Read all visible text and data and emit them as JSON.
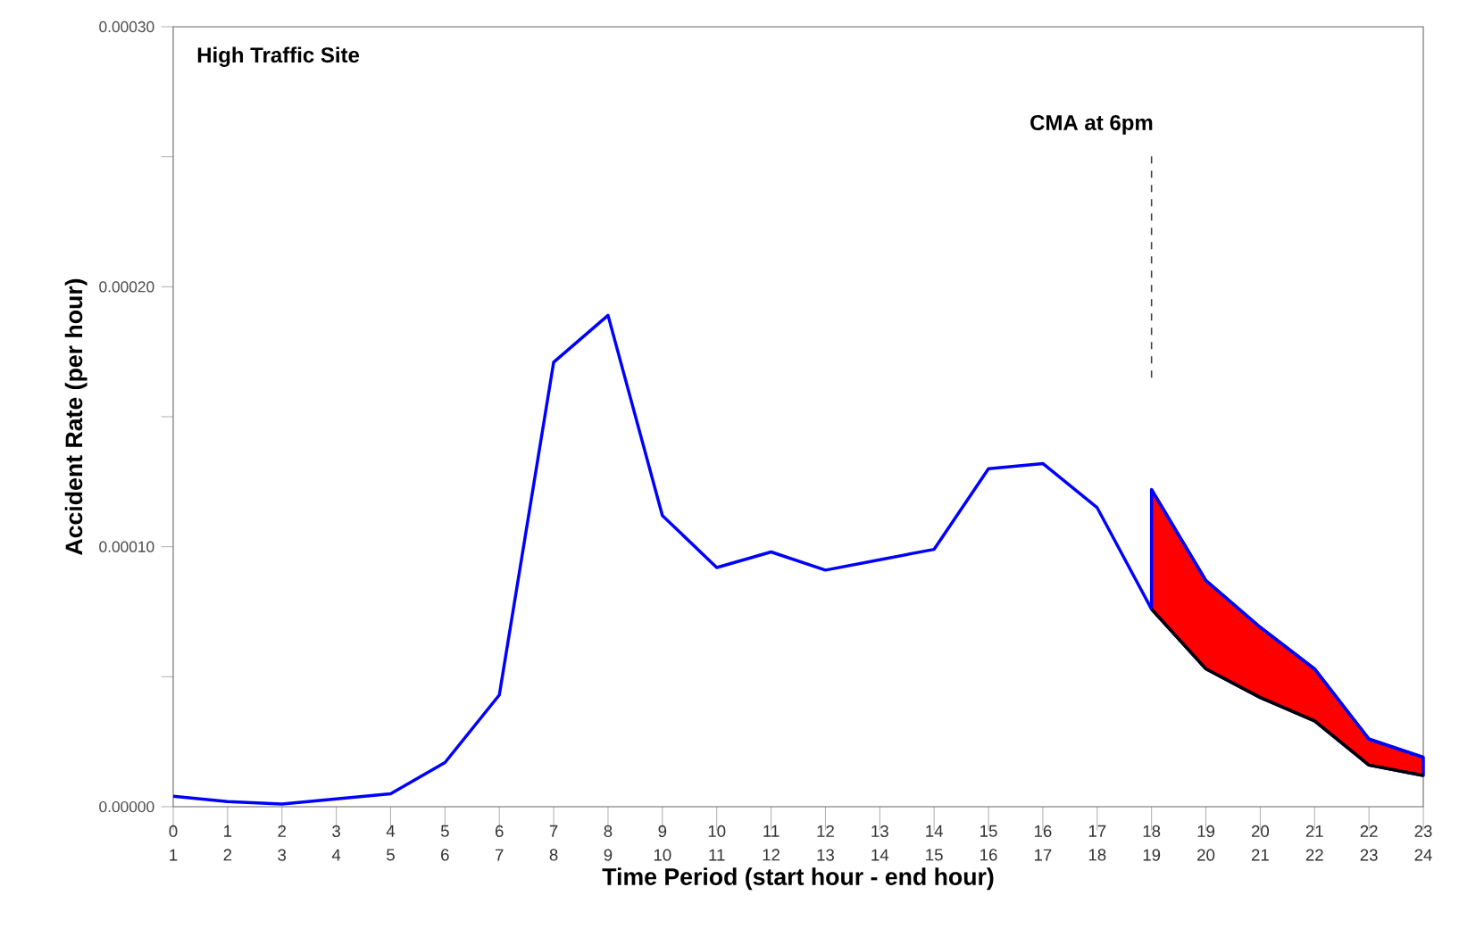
{
  "chart_data": {
    "type": "line",
    "title": "High Traffic Site",
    "xlabel": "Time Period (start hour - end hour)",
    "ylabel": "Accident Rate (per hour)",
    "categories": [
      "0\n1",
      "1\n2",
      "2\n3",
      "3\n4",
      "4\n5",
      "5\n6",
      "6\n7",
      "7\n8",
      "8\n9",
      "9\n10",
      "10\n11",
      "11\n12",
      "12\n13",
      "13\n14",
      "14\n15",
      "15\n16",
      "16\n17",
      "17\n18",
      "18\n19",
      "19\n20",
      "20\n21",
      "21\n22",
      "22\n23",
      "23\n24"
    ],
    "ylim": [
      0,
      0.0003
    ],
    "yticks": [
      {
        "value": 0,
        "label": "0.00000"
      },
      {
        "value": 5e-05,
        "label": null
      },
      {
        "value": 0.0001,
        "label": "0.00010"
      },
      {
        "value": 0.00015,
        "label": null
      },
      {
        "value": 0.0002,
        "label": "0.00020"
      },
      {
        "value": 0.00025,
        "label": null
      },
      {
        "value": 0.0003,
        "label": "0.00030"
      }
    ],
    "series": [
      {
        "color": "#0000ff",
        "values": [
          4e-06,
          2e-06,
          1e-06,
          3e-06,
          5e-06,
          1.7e-05,
          4.3e-05,
          0.000171,
          0.000189,
          0.000112,
          9.2e-05,
          9.8e-05,
          9.1e-05,
          9.5e-05,
          9.9e-05,
          0.00013,
          0.000132,
          0.000115,
          7.6e-05,
          null,
          null,
          null,
          null,
          null
        ]
      },
      {
        "color": "#0000ff",
        "values": [
          null,
          null,
          null,
          null,
          null,
          null,
          null,
          null,
          null,
          null,
          null,
          null,
          null,
          null,
          null,
          null,
          null,
          null,
          0.000122,
          8.7e-05,
          6.9e-05,
          5.3e-05,
          2.6e-05,
          1.9e-05
        ]
      },
      {
        "color": "#000000",
        "values": [
          null,
          null,
          null,
          null,
          null,
          null,
          null,
          null,
          null,
          null,
          null,
          null,
          null,
          null,
          null,
          null,
          null,
          null,
          7.6e-05,
          5.3e-05,
          4.2e-05,
          3.3e-05,
          1.6e-05,
          1.2e-05
        ]
      },
      {
        "type": "area",
        "color": "#ff0000",
        "values": [
          null,
          null,
          null,
          null,
          null,
          null,
          null,
          null,
          null,
          null,
          null,
          null,
          null,
          null,
          null,
          null,
          null,
          null,
          0.000122,
          8.7e-05,
          6.9e-05,
          5.3e-05,
          2.6e-05,
          1.9e-05
        ]
      }
    ],
    "ref_lines": [
      {
        "axis": "x",
        "value": "18\n19",
        "label": "CMA at 6pm",
        "line_style": "dashed"
      }
    ]
  }
}
